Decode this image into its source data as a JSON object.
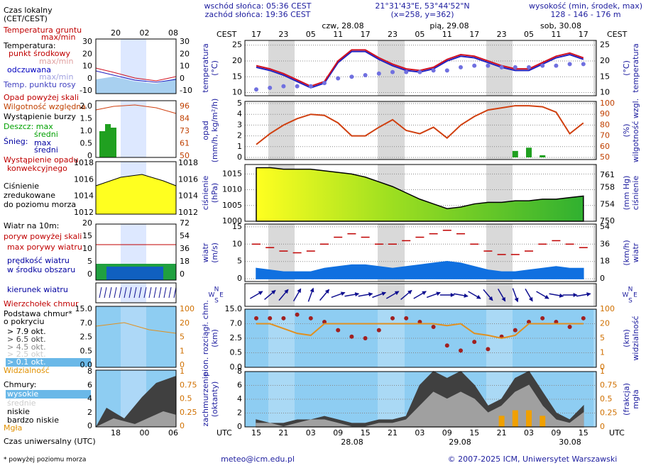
{
  "header": {
    "sunrise": "wschód słońca: 05:36 CEST",
    "sunset": "zachód słońca: 19:36 CEST",
    "coords": "21°31'43\"E, 53°44'52\"N",
    "grid": "(x=258, y=362)",
    "elev_title": "wysokość (min, środek, max)",
    "elev": "128 - 146 - 176 m"
  },
  "footer": {
    "note": "* powyżej poziomu morza",
    "email": "meteo@icm.edu.pl",
    "copyright": "© 2007-2025 ICM, Uniwersytet Warszawski"
  },
  "legend": {
    "items": [
      "Czas lokalny",
      "(CET/CEST)",
      "Temperatura gruntu",
      "max/min",
      "Temperatura:",
      "punkt środkowy",
      "max/min",
      "odczuwana",
      "max/min",
      "Temp. punktu rosy",
      "Opad powyżej skali",
      "Wilgotność względna",
      "Wystąpienie burzy",
      "Deszcz: max",
      "średni",
      "Śnieg:",
      "max",
      "średni",
      "Wystąpienie opadu",
      "konwekcyjnego",
      "Ciśnienie",
      "zredukowane",
      "do poziomu morza",
      "Wiatr na 10m:",
      "poryw powyżej skali",
      "max porywy wiatru",
      "prędkość wiatru",
      "w środku obszaru",
      "kierunek wiatru",
      "Wierzchołek chmur",
      "Podstawa chmur*",
      "o pokryciu",
      "> 7.9 okt.",
      "> 6.5 okt.",
      "> 4.5 okt.",
      "> 2.5 okt.",
      "> 0.1 okt.",
      "Widzialność",
      "Chmury:",
      "wysokie",
      "średnie",
      "niskie",
      "bardzo niskie",
      "Mgła",
      "Czas uniwersalny (UTC)"
    ],
    "ticks": {
      "time_top": [
        "20",
        "02",
        "08"
      ],
      "temp_l": [
        "30",
        "20",
        "10",
        "0",
        "-10"
      ],
      "temp_r": [
        "30",
        "20",
        "10",
        "0",
        "-10"
      ],
      "precip_l": [
        "2.0",
        "1.5",
        "1.0",
        "0.5",
        "0"
      ],
      "humid_r": [
        "96",
        "84",
        "73",
        "61",
        "50"
      ],
      "press_l": [
        "1018",
        "1016",
        "1014",
        "1012"
      ],
      "press_r": [
        "1018",
        "1016",
        "1014",
        "1012"
      ],
      "wind_l": [
        "20",
        "15",
        "10",
        "5",
        "0"
      ],
      "wind_r": [
        "72",
        "54",
        "36",
        "18",
        "0"
      ],
      "base_l": [
        "15.0",
        "7.0",
        "2.5",
        "0.5",
        "0.0"
      ],
      "vis_r": [
        "100",
        "20",
        "5",
        "1",
        "0"
      ],
      "cloud_l": [
        "8",
        "6",
        "4",
        "2",
        "0"
      ],
      "fog_r": [
        "1",
        "0.75",
        "0.5",
        "0.25",
        "0"
      ],
      "time_bottom": [
        "18",
        "00",
        "06"
      ]
    }
  },
  "time_axis": {
    "tz_top": "CEST",
    "tz_bottom": "UTC",
    "cest": [
      "17",
      "23",
      "05",
      "11",
      "17",
      "23",
      "05",
      "11",
      "17",
      "23",
      "05",
      "11",
      "17"
    ],
    "utc": [
      "15",
      "21",
      "03",
      "09",
      "15",
      "21",
      "03",
      "09",
      "15",
      "21",
      "03",
      "09",
      "15"
    ],
    "dates_top": [
      "czw, 28.08",
      "pią, 29.08",
      "sob, 30.08"
    ],
    "dates_bottom": [
      "28.08",
      "29.08",
      "30.08"
    ]
  },
  "chart_data": [
    {
      "type": "line",
      "ylabel": [
        "temperatura",
        "(°C)"
      ],
      "y2label": [
        "(°C)",
        "temperatura"
      ],
      "ylim": [
        9,
        26.5
      ],
      "yticks": [
        10,
        15,
        20,
        25
      ],
      "y2lim": [
        9,
        26.5
      ],
      "y2ticks": [
        10,
        15,
        20,
        25
      ],
      "grid": true,
      "series": [
        {
          "name": "odczuwana",
          "type": "line",
          "color": "#2020c0",
          "values": [
            18,
            17,
            15.5,
            13.5,
            11.5,
            13,
            19.5,
            23,
            23,
            20.5,
            18.5,
            17,
            16.5,
            17.5,
            20,
            21.5,
            21,
            19.5,
            18,
            17,
            17,
            19,
            21,
            22,
            20.5
          ]
        },
        {
          "name": "punkt środkowy",
          "type": "line",
          "color": "#d01020",
          "values": [
            18.5,
            17.5,
            16,
            14,
            12,
            13.5,
            20,
            23.5,
            23.5,
            21,
            19,
            17.5,
            17,
            18,
            20.5,
            22,
            21.5,
            20,
            18.5,
            17.5,
            17.5,
            19.5,
            21.5,
            22.5,
            21
          ]
        },
        {
          "name": "Temp. punktu rosy",
          "type": "dots",
          "color": "#7070e0",
          "values": [
            11,
            11.5,
            12,
            12,
            12,
            13,
            14.5,
            15,
            15.5,
            16,
            16.5,
            16.5,
            16.5,
            17,
            17,
            18,
            18.5,
            18.5,
            18,
            18,
            18,
            18.5,
            18.5,
            19,
            19
          ]
        }
      ]
    },
    {
      "type": "bar",
      "ylabel": [
        "opad",
        "(mm/h, kg/m²/h)"
      ],
      "y2label": [
        "(%)",
        "wilgotność wzgl."
      ],
      "ylim": [
        -0.2,
        5.2
      ],
      "yticks": [
        0,
        1,
        2,
        3,
        4,
        5
      ],
      "y2lim": [
        48,
        102
      ],
      "y2ticks": [
        50,
        60,
        70,
        80,
        90,
        100
      ],
      "y2color": "#c04000",
      "grid": true,
      "series": [
        {
          "name": "Deszcz",
          "type": "bar",
          "color": "#20a020",
          "values": [
            0,
            0,
            0,
            0,
            0,
            0,
            0,
            0,
            0,
            0,
            0,
            0,
            0,
            0,
            0,
            0,
            0,
            0,
            0,
            0.6,
            0.9,
            0.2,
            0,
            0,
            0
          ]
        },
        {
          "name": "Wilgotność względna",
          "type": "line",
          "axis": "y2",
          "color": "#d04010",
          "values": [
            62,
            72,
            80,
            86,
            90,
            89,
            82,
            70,
            70,
            78,
            85,
            75,
            72,
            78,
            68,
            80,
            88,
            94,
            96,
            98,
            98,
            97,
            92,
            72,
            82
          ]
        }
      ]
    },
    {
      "type": "area",
      "ylabel": [
        "ciśnienie",
        "(hPa)"
      ],
      "y2label": [
        "(mm Hg)",
        "ciśnienie"
      ],
      "ylim": [
        1000,
        1018
      ],
      "yticks": [
        1000,
        1005,
        1010,
        1015
      ],
      "y2lim": [
        750,
        763.5
      ],
      "y2ticks": [
        750,
        754,
        758,
        761
      ],
      "grid": true,
      "series": [
        {
          "name": "Ciśnienie",
          "type": "area",
          "color": "#60c020",
          "values": [
            1017,
            1017,
            1016.5,
            1016.5,
            1016.5,
            1016,
            1015.5,
            1015,
            1014,
            1012.5,
            1011,
            1009,
            1007,
            1005.5,
            1004,
            1004.5,
            1005.5,
            1006,
            1006,
            1006.5,
            1006.5,
            1007,
            1007,
            1007.5,
            1008
          ]
        }
      ]
    },
    {
      "type": "area",
      "ylabel": [
        "wiatr",
        "(m/s)"
      ],
      "y2label": [
        "(km/h)",
        "wiatr"
      ],
      "ylim": [
        -0.8,
        15.8
      ],
      "yticks": [
        0,
        5,
        10,
        15
      ],
      "y2lim": [
        -2.9,
        56.9
      ],
      "y2ticks": [
        0,
        18,
        36,
        54
      ],
      "grid": true,
      "series": [
        {
          "name": "prędkość wiatru",
          "type": "area",
          "color": "#1070e0",
          "values": [
            3,
            2.5,
            2,
            2,
            2,
            3,
            3.5,
            4,
            4,
            3.5,
            3,
            3.5,
            4,
            4.5,
            5,
            4.5,
            3.5,
            2.5,
            2,
            2,
            2.5,
            3,
            3.5,
            3,
            3
          ]
        },
        {
          "name": "max porywy wiatru",
          "type": "dashes",
          "color": "#c00000",
          "values": [
            10,
            9,
            8,
            7.5,
            8,
            10,
            12,
            13,
            12,
            10,
            10,
            11,
            12,
            13,
            14,
            13,
            10,
            8,
            7,
            7,
            8,
            10,
            11,
            10,
            9
          ]
        }
      ]
    },
    {
      "type": "arrows",
      "compass": [
        "N",
        "W",
        "E",
        "S"
      ],
      "series": [
        {
          "name": "kierunek wiatru",
          "type": "arrows",
          "color": "#101090",
          "values": [
            240,
            230,
            220,
            210,
            200,
            220,
            250,
            260,
            260,
            250,
            240,
            230,
            240,
            250,
            270,
            280,
            300,
            320,
            330,
            340,
            330,
            300,
            280,
            270,
            260
          ]
        }
      ]
    },
    {
      "type": "scatter",
      "ylabel": [
        "pion. rozciągł. chm.",
        "(km)"
      ],
      "y2label": [
        "(km)",
        "widzialność"
      ],
      "background": "#8ecdf2",
      "yscale": "nonlinear",
      "ylim": [
        0,
        15
      ],
      "yticks": [
        {
          "value": 0,
          "label": "0.0"
        },
        0.5,
        2.5,
        {
          "value": 7,
          "label": "7.0"
        },
        {
          "value": 15,
          "label": "15.0"
        }
      ],
      "y2lim": [
        0,
        100
      ],
      "y2ticks": [
        0,
        1,
        5,
        20,
        100
      ],
      "y2color": "#d07000",
      "grid": true,
      "series": [
        {
          "name": "Podstawa chmur",
          "type": "dots",
          "color": "#a02020",
          "values": [
            10,
            10,
            10,
            12,
            10,
            8,
            5,
            3,
            2.5,
            5,
            10,
            10,
            8,
            6,
            1.5,
            0.8,
            2,
            1,
            3,
            5,
            8,
            10,
            8,
            6,
            10
          ]
        },
        {
          "name": "Widzialność",
          "type": "line",
          "axis": "y2",
          "color": "#e09020",
          "values": [
            20,
            20,
            15,
            10,
            8,
            20,
            20,
            20,
            20,
            20,
            20,
            20,
            20,
            20,
            18,
            20,
            10,
            8,
            5,
            8,
            20,
            20,
            20,
            20,
            20
          ]
        }
      ]
    },
    {
      "type": "area",
      "ylabel": [
        "zachmurzenie",
        "(oktanty)"
      ],
      "y2label": [
        "(frakcja)",
        "mgła"
      ],
      "background": "#8ecdf2",
      "ylim": [
        0,
        8
      ],
      "yticks": [
        0,
        2,
        4,
        6,
        8
      ],
      "y2lim": [
        0,
        1
      ],
      "y2ticks": [
        0,
        0.25,
        0.5,
        0.75,
        1
      ],
      "y2color": "#d07000",
      "grid": true,
      "series": [
        {
          "name": "średnie",
          "type": "area",
          "color": "#404040",
          "values": [
            1,
            0.5,
            0.5,
            1,
            1,
            1.5,
            1,
            0.5,
            0.5,
            1,
            1,
            1.5,
            6,
            8,
            7,
            8,
            6,
            3,
            4,
            7,
            8,
            5,
            2,
            1,
            3
          ]
        },
        {
          "name": "niskie",
          "type": "area",
          "color": "#a0a0a0",
          "values": [
            0.5,
            0.5,
            0,
            0.5,
            1,
            1,
            0.5,
            0,
            0,
            0.5,
            0.5,
            1,
            3,
            5,
            4,
            5,
            4,
            2,
            3,
            5,
            6,
            3,
            1,
            0.5,
            2
          ]
        },
        {
          "name": "Mgła",
          "type": "bar",
          "axis": "y2",
          "color": "#f0a000",
          "values": [
            0,
            0,
            0,
            0,
            0,
            0,
            0,
            0,
            0,
            0,
            0,
            0,
            0,
            0,
            0,
            0,
            0,
            0,
            0.2,
            0.3,
            0.3,
            0.2,
            0,
            0,
            0
          ]
        }
      ]
    }
  ]
}
